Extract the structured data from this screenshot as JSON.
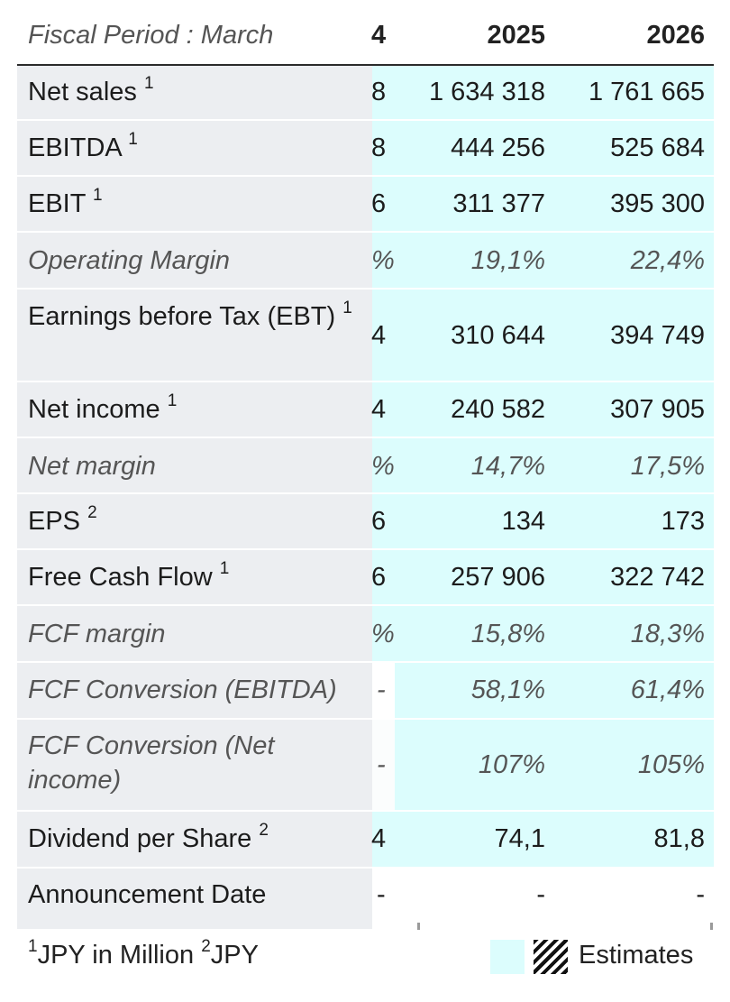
{
  "header": {
    "fiscal_label": "Fiscal Period : March",
    "col_prev": "4",
    "col_2025": "2025",
    "col_2026": "2026"
  },
  "rows": [
    {
      "label": "Net sales",
      "sup": "1",
      "prev": "8",
      "v2025": "1 634 318",
      "v2026": "1 761 665"
    },
    {
      "label": "EBITDA",
      "sup": "1",
      "prev": "8",
      "v2025": "444 256",
      "v2026": "525 684"
    },
    {
      "label": "EBIT",
      "sup": "1",
      "prev": "6",
      "v2025": "311 377",
      "v2026": "395 300"
    },
    {
      "label": "Operating Margin",
      "sup": "",
      "prev": "%",
      "v2025": "19,1%",
      "v2026": "22,4%"
    },
    {
      "label": "Earnings before Tax (EBT)",
      "sup": "1",
      "prev": "4",
      "v2025": "310 644",
      "v2026": "394 749"
    },
    {
      "label": "Net income",
      "sup": "1",
      "prev": "4",
      "v2025": "240 582",
      "v2026": "307 905"
    },
    {
      "label": "Net margin",
      "sup": "",
      "prev": "%",
      "v2025": "14,7%",
      "v2026": "17,5%"
    },
    {
      "label": "EPS",
      "sup": "2",
      "prev": "6",
      "v2025": "134",
      "v2026": "173"
    },
    {
      "label": "Free Cash Flow",
      "sup": "1",
      "prev": "6",
      "v2025": "257 906",
      "v2026": "322 742"
    },
    {
      "label": "FCF margin",
      "sup": "",
      "prev": "%",
      "v2025": "15,8%",
      "v2026": "18,3%"
    },
    {
      "label": "FCF Conversion (EBITDA)",
      "sup": "",
      "prev": "-",
      "v2025": "58,1%",
      "v2026": "61,4%"
    },
    {
      "label": "FCF Conversion (Net income)",
      "sup": "",
      "prev": "-",
      "v2025": "107%",
      "v2026": "105%"
    },
    {
      "label": "Dividend per Share",
      "sup": "2",
      "prev": "4",
      "v2025": "74,1",
      "v2026": "81,8"
    },
    {
      "label": "Announcement Date",
      "sup": "",
      "prev": "-",
      "v2025": "-",
      "v2026": "-"
    }
  ],
  "footer": {
    "sup1": "1",
    "unit1": "JPY in Million",
    "sup2": "2",
    "unit2": "JPY",
    "legend_label": "Estimates"
  },
  "colors": {
    "estimate_bg": "#dcfdfd",
    "label_bg": "#eceef1"
  }
}
